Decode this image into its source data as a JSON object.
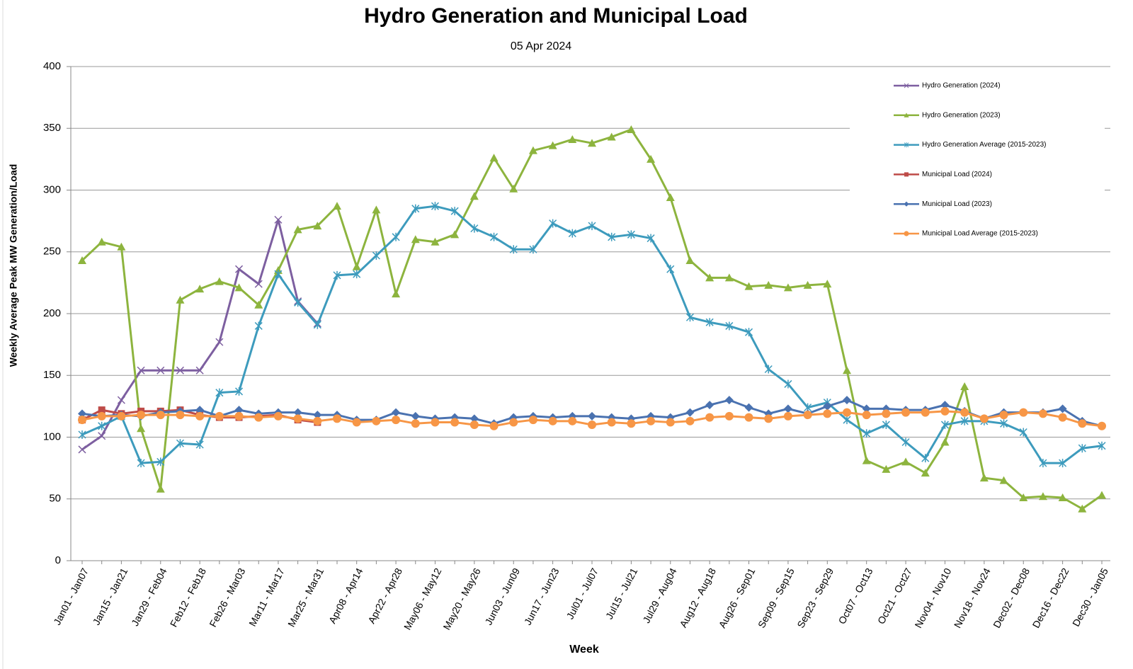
{
  "chart_data": {
    "type": "line",
    "title": "Hydro Generation and Municipal Load",
    "subtitle": "05 Apr 2024",
    "x_label": "Week",
    "y_label": "Weekly Average Peak MW Generation/Load",
    "categories": [
      "Jan01 - Jan07",
      null,
      "Jan15 - Jan21",
      null,
      "Jan29 - Feb04",
      null,
      "Feb12 - Feb18",
      null,
      "Feb26 - Mar03",
      null,
      "Mar11 - Mar17",
      null,
      "Mar25 - Mar31",
      null,
      "Apr08 - Apr14",
      null,
      "Apr22 - Apr28",
      null,
      "May06 - May12",
      null,
      "May20 - May26",
      null,
      "Jun03 - Jun09",
      null,
      "Jun17 - Jun23",
      null,
      "Jul01 - Jul07",
      null,
      "Jul15 - Jul21",
      null,
      "Jul29 - Aug04",
      null,
      "Aug12 - Aug18",
      null,
      "Aug26 - Sep01",
      null,
      "Sep09 - Sep15",
      null,
      "Sep23 - Sep29",
      null,
      "Oct07 - Oct13",
      null,
      "Oct21 - Oct27",
      null,
      "Nov04 - Nov10",
      null,
      "Nov18 - Nov24",
      null,
      "Dec02 - Dec08",
      null,
      "Dec16 - Dec22",
      null,
      "Dec30 - Jan05"
    ],
    "ylim": [
      0,
      400
    ],
    "yticks": [
      0,
      50,
      100,
      150,
      200,
      250,
      300,
      350,
      400
    ],
    "grid": true,
    "legend": "right",
    "series": [
      {
        "name": "Hydro Generation (2024)",
        "color": "#7d5fa0",
        "marker": "x",
        "values": [
          90,
          101,
          130,
          154,
          154,
          154,
          154,
          177,
          236,
          224,
          276,
          210,
          192,
          null,
          null,
          null,
          null,
          null,
          null,
          null,
          null,
          null,
          null,
          null,
          null,
          null,
          null,
          null,
          null,
          null,
          null,
          null,
          null,
          null,
          null,
          null,
          null,
          null,
          null,
          null,
          null,
          null,
          null,
          null,
          null,
          null,
          null,
          null,
          null,
          null,
          null,
          null,
          null
        ]
      },
      {
        "name": "Hydro Generation (2023)",
        "color": "#8db43e",
        "marker": "triangle",
        "values": [
          243,
          258,
          254,
          107,
          58,
          211,
          220,
          226,
          221,
          207,
          235,
          268,
          271,
          287,
          238,
          284,
          216,
          260,
          258,
          264,
          295,
          326,
          301,
          332,
          336,
          341,
          338,
          343,
          349,
          325,
          294,
          243,
          229,
          229,
          222,
          223,
          221,
          223,
          224,
          154,
          81,
          74,
          80,
          71,
          96,
          141,
          67,
          65,
          51,
          52,
          51,
          42,
          53
        ]
      },
      {
        "name": "Hydro Generation Average (2015-2023)",
        "color": "#3d9bbd",
        "marker": "star",
        "values": [
          102,
          109,
          117,
          79,
          80,
          95,
          94,
          136,
          137,
          190,
          232,
          209,
          191,
          231,
          232,
          247,
          262,
          285,
          287,
          283,
          269,
          262,
          252,
          252,
          273,
          265,
          271,
          262,
          264,
          261,
          236,
          197,
          193,
          190,
          185,
          155,
          143,
          124,
          128,
          114,
          103,
          110,
          96,
          83,
          110,
          113,
          113,
          111,
          104,
          79,
          79,
          91,
          93
        ]
      },
      {
        "name": "Municipal Load (2024)",
        "color": "#be4b48",
        "marker": "square",
        "values": [
          114,
          122,
          119,
          121,
          121,
          122,
          118,
          116,
          116,
          117,
          118,
          114,
          112,
          null,
          null,
          null,
          null,
          null,
          null,
          null,
          null,
          null,
          null,
          null,
          null,
          null,
          null,
          null,
          null,
          null,
          null,
          null,
          null,
          null,
          null,
          null,
          null,
          null,
          null,
          null,
          null,
          null,
          null,
          null,
          null,
          null,
          null,
          null,
          null,
          null,
          null,
          null,
          null
        ]
      },
      {
        "name": "Municipal Load (2023)",
        "color": "#4a72b0",
        "marker": "diamond",
        "values": [
          119,
          117,
          118,
          117,
          120,
          121,
          122,
          117,
          122,
          119,
          120,
          120,
          118,
          118,
          114,
          114,
          120,
          117,
          115,
          116,
          115,
          111,
          116,
          117,
          116,
          117,
          117,
          116,
          115,
          117,
          116,
          120,
          126,
          130,
          124,
          119,
          123,
          119,
          125,
          130,
          123,
          123,
          122,
          122,
          126,
          121,
          115,
          120,
          120,
          120,
          123,
          113,
          109
        ]
      },
      {
        "name": "Municipal Load Average (2015-2023)",
        "color": "#f79646",
        "marker": "circle",
        "values": [
          114,
          117,
          117,
          118,
          118,
          118,
          117,
          117,
          117,
          116,
          117,
          115,
          113,
          115,
          112,
          113,
          114,
          111,
          112,
          112,
          110,
          109,
          112,
          114,
          113,
          113,
          110,
          112,
          111,
          113,
          112,
          113,
          116,
          117,
          116,
          115,
          117,
          118,
          119,
          120,
          118,
          119,
          120,
          120,
          121,
          120,
          115,
          118,
          120,
          119,
          116,
          111,
          109
        ]
      }
    ]
  }
}
